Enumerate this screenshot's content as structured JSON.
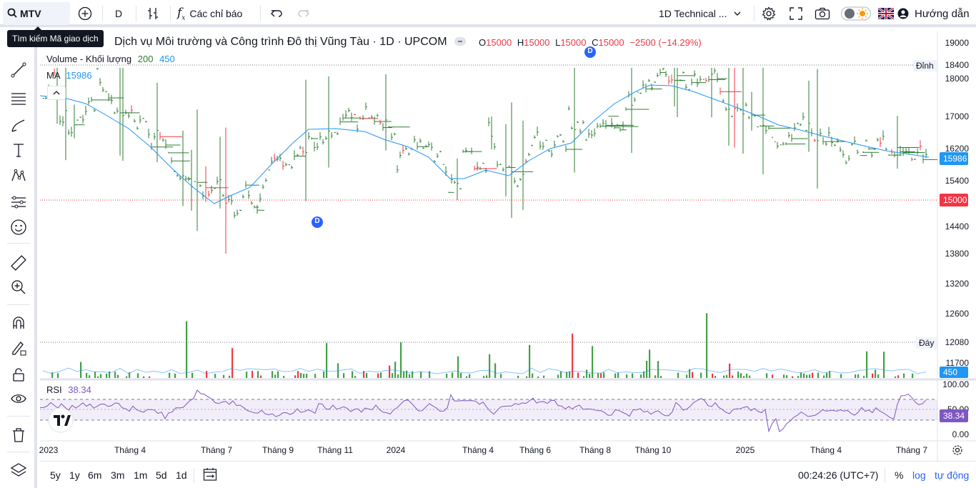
{
  "toolbar": {
    "symbol": "MTV",
    "interval": "D",
    "indicators_label": "Các chỉ báo",
    "layout_name": "1D Technical ...",
    "guide_label": "Hướng dẫn"
  },
  "tooltip": "Tìm kiếm Mã giao dịch",
  "legend": {
    "title": "Dịch vụ Môi trường và Công trình Đô thị Vũng Tàu · 1D · UPCOM",
    "o_label": "O",
    "o_value": "15000",
    "h_label": "H",
    "h_value": "15000",
    "l_label": "L",
    "l_value": "15000",
    "c_label": "C",
    "c_value": "15000",
    "change": "−2500 (−14.29%)",
    "volume_label": "Volume - Khối lượng",
    "volume_value_1": "200",
    "volume_value_2": "450",
    "ma_label": "MA",
    "ma_value": "15986",
    "rsi_label": "RSI",
    "rsi_value": "38.34"
  },
  "price_axis": {
    "ticks": [
      "19000",
      "18000",
      "17000",
      "16200",
      "15400",
      "14400",
      "13800",
      "13200",
      "12600",
      "11700"
    ],
    "peak_label": "Đỉnh",
    "peak_value": "18400",
    "trough_label": "Đáy",
    "trough_value": "12080",
    "ma_tag": "15986",
    "price_tag": "15000",
    "volume_tag": "450"
  },
  "rsi_axis": {
    "ticks": [
      "100.00",
      "50.00",
      "0.00"
    ],
    "rsi_tag": "38.34"
  },
  "time_axis": [
    "2023",
    "Tháng 4",
    "Tháng 7",
    "Tháng 9",
    "Tháng 11",
    "2024",
    "Tháng 4",
    "Tháng 6",
    "Tháng 8",
    "Tháng 10",
    "2025",
    "Tháng 4",
    "Tháng 7"
  ],
  "bottom": {
    "ranges": [
      "5y",
      "1y",
      "6m",
      "3m",
      "1m",
      "5d",
      "1d"
    ],
    "clock": "00:24:26 (UTC+7)",
    "percent": "%",
    "log": "log",
    "auto": "tự động"
  },
  "markers": [
    "D",
    "D"
  ],
  "colors": {
    "up": "#089981",
    "candle_green": "#2e7d32",
    "down": "#f23645",
    "ma": "#2196f3",
    "rsi": "#7e57c2",
    "accent": "#2962ff"
  }
}
